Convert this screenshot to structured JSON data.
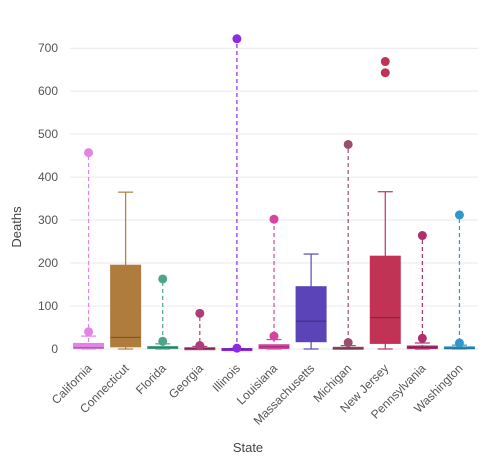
{
  "chart_data": {
    "type": "box",
    "xlabel": "State",
    "ylabel": "Deaths",
    "ylim": [
      0,
      750
    ],
    "yticks": [
      0,
      100,
      200,
      300,
      400,
      500,
      600,
      700
    ],
    "grid": true,
    "categories": [
      "California",
      "Connecticut",
      "Florida",
      "Georgia",
      "Illinois",
      "Louisiana",
      "Massachusetts",
      "Michigan",
      "New Jersey",
      "Pennsylvania",
      "Washington"
    ],
    "boxes": [
      {
        "category": "California",
        "color": "#e383e6",
        "whisker_style": "dashed",
        "min": 0,
        "q1": 1,
        "median": 3,
        "q3": 13,
        "max": 30,
        "outliers": [
          40,
          457
        ]
      },
      {
        "category": "Connecticut",
        "color": "#b07c3e",
        "whisker_style": "solid",
        "min": 0,
        "q1": 5,
        "median": 27,
        "q3": 195,
        "max": 365,
        "outliers": []
      },
      {
        "category": "Florida",
        "color": "#4ea58a",
        "whisker_style": "dashed",
        "min": 0,
        "q1": 1,
        "median": 3,
        "q3": 6,
        "max": 12,
        "outliers": [
          18,
          163
        ]
      },
      {
        "category": "Georgia",
        "color": "#b03a7a",
        "whisker_style": "dashed",
        "min": 0,
        "q1": 0,
        "median": 1,
        "q3": 3,
        "max": 6,
        "outliers": [
          8,
          83
        ]
      },
      {
        "category": "Illinois",
        "color": "#8e2be2",
        "whisker_style": "dashed",
        "min": 0,
        "q1": 0,
        "median": 0,
        "q3": 1,
        "max": 1,
        "outliers": [
          2,
          722
        ]
      },
      {
        "category": "Louisiana",
        "color": "#d6449f",
        "whisker_style": "dashed",
        "min": 0,
        "q1": 1,
        "median": 5,
        "q3": 10,
        "max": 22,
        "outliers": [
          30,
          302
        ]
      },
      {
        "category": "Massachusetts",
        "color": "#5b44b8",
        "whisker_style": "solid",
        "min": 0,
        "q1": 17,
        "median": 65,
        "q3": 145,
        "max": 221,
        "outliers": []
      },
      {
        "category": "Michigan",
        "color": "#9a4e6e",
        "whisker_style": "dashed",
        "min": 0,
        "q1": 1,
        "median": 2,
        "q3": 4,
        "max": 8,
        "outliers": [
          15,
          476
        ]
      },
      {
        "category": "New Jersey",
        "color": "#c13255",
        "whisker_style": "solid",
        "min": 0,
        "q1": 13,
        "median": 73,
        "q3": 216,
        "max": 366,
        "outliers": [
          643,
          669
        ]
      },
      {
        "category": "Pennsylvania",
        "color": "#b02e6e",
        "whisker_style": "dashed",
        "min": 0,
        "q1": 1,
        "median": 4,
        "q3": 7,
        "max": 14,
        "outliers": [
          25,
          264
        ]
      },
      {
        "category": "Washington",
        "color": "#2f97c9",
        "whisker_style": "dashed",
        "min": 0,
        "q1": 1,
        "median": 2,
        "q3": 5,
        "max": 9,
        "outliers": [
          14,
          312
        ]
      }
    ]
  }
}
